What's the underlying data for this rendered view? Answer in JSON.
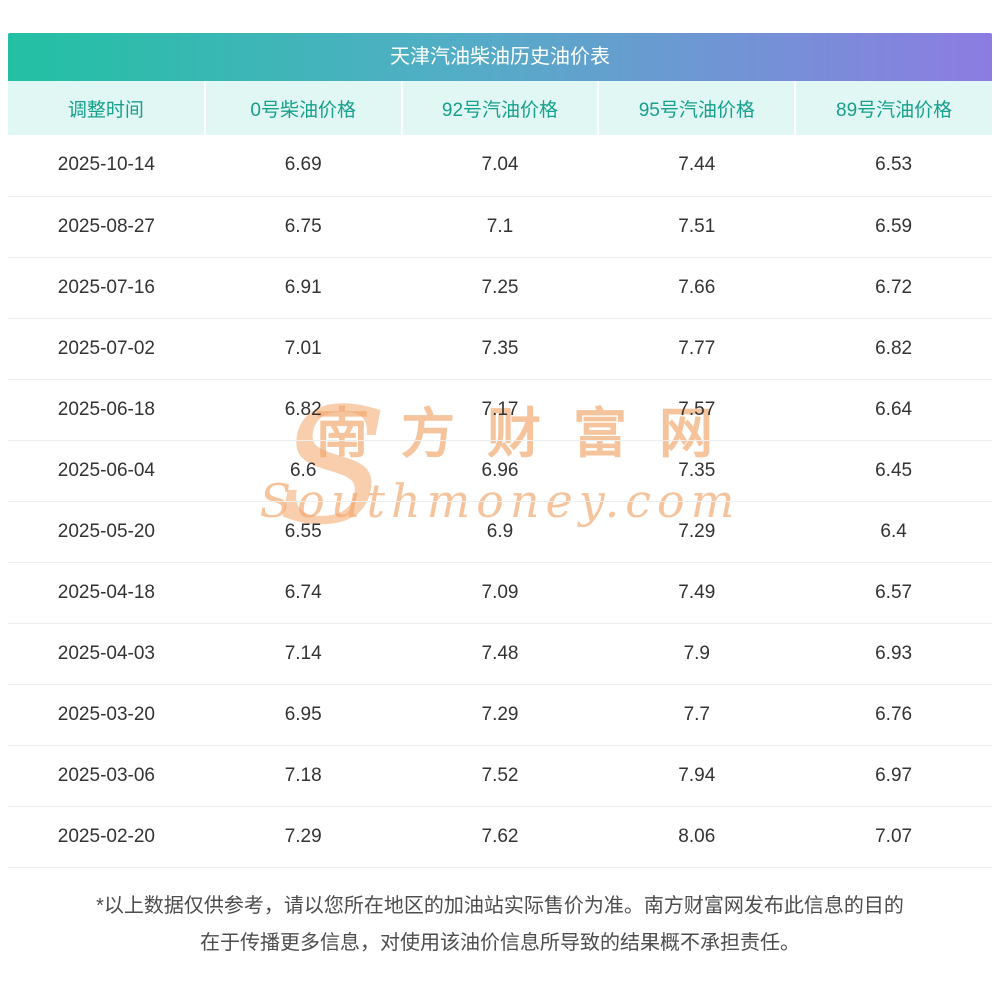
{
  "title": "天津汽油柴油历史油价表",
  "chart_data": {
    "type": "table",
    "title": "天津汽油柴油历史油价表",
    "columns": [
      "调整时间",
      "0号柴油价格",
      "92号汽油价格",
      "95号汽油价格",
      "89号汽油价格"
    ],
    "rows": [
      [
        "2025-10-14",
        "6.69",
        "7.04",
        "7.44",
        "6.53"
      ],
      [
        "2025-08-27",
        "6.75",
        "7.1",
        "7.51",
        "6.59"
      ],
      [
        "2025-07-16",
        "6.91",
        "7.25",
        "7.66",
        "6.72"
      ],
      [
        "2025-07-02",
        "7.01",
        "7.35",
        "7.77",
        "6.82"
      ],
      [
        "2025-06-18",
        "6.82",
        "7.17",
        "7.57",
        "6.64"
      ],
      [
        "2025-06-04",
        "6.6",
        "6.96",
        "7.35",
        "6.45"
      ],
      [
        "2025-05-20",
        "6.55",
        "6.9",
        "7.29",
        "6.4"
      ],
      [
        "2025-04-18",
        "6.74",
        "7.09",
        "7.49",
        "6.57"
      ],
      [
        "2025-04-03",
        "7.14",
        "7.48",
        "7.9",
        "6.93"
      ],
      [
        "2025-03-20",
        "6.95",
        "7.29",
        "7.7",
        "6.76"
      ],
      [
        "2025-03-06",
        "7.18",
        "7.52",
        "7.94",
        "6.97"
      ],
      [
        "2025-02-20",
        "7.29",
        "7.62",
        "8.06",
        "7.07"
      ]
    ]
  },
  "watermark": {
    "cn": "南方财富网",
    "en": "Southmoney.com",
    "swoosh_glyph": "S"
  },
  "footer": {
    "line1": "*以上数据仅供参考，请以您所在地区的加油站实际售价为准。南方财富网发布此信息的目的",
    "line2": "在于传播更多信息，对使用该油价信息所导致的结果概不承担责任。"
  },
  "colors": {
    "title_gradient_start": "#22c0a3",
    "title_gradient_end": "#8d7ce2",
    "header_bg": "#e1f7f3",
    "header_text": "#17a08d",
    "body_text": "#333333",
    "watermark": "#f4b583",
    "row_divider": "#ededed"
  }
}
